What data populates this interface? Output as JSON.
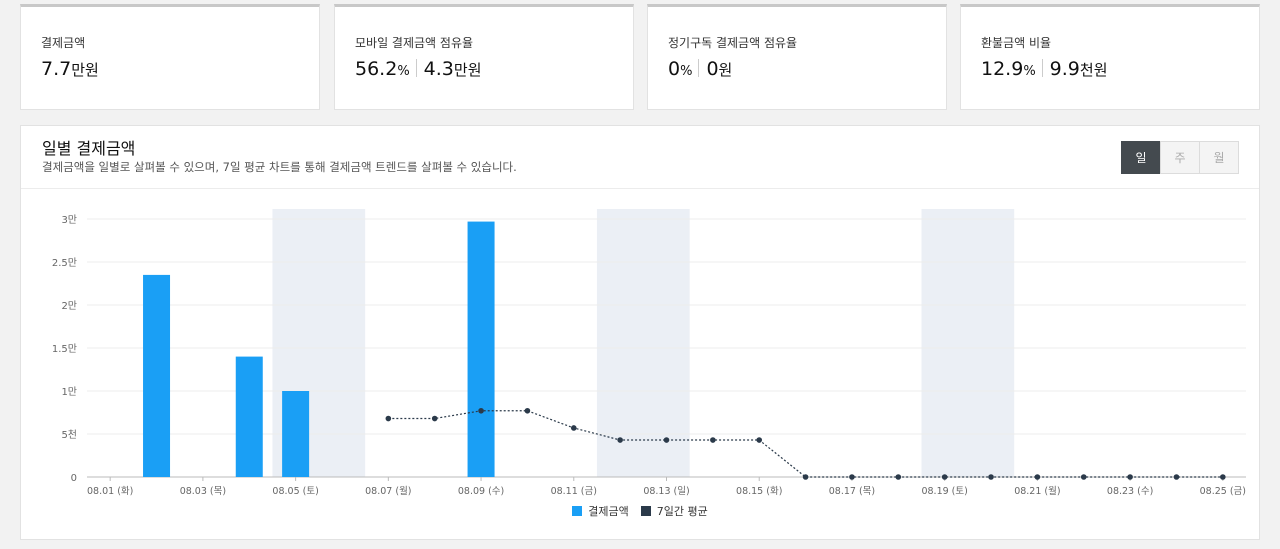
{
  "cards": [
    {
      "label": "결제금액",
      "parts": [
        {
          "num": "7.7",
          "unit": "만원"
        }
      ]
    },
    {
      "label": "모바일 결제금액 점유율",
      "parts": [
        {
          "num": "56.2",
          "unit": "%"
        },
        {
          "num": "4.3",
          "unit": "만원"
        }
      ]
    },
    {
      "label": "정기구독 결제금액 점유율",
      "parts": [
        {
          "num": "0",
          "unit": "%"
        },
        {
          "num": "0",
          "unit": "원"
        }
      ]
    },
    {
      "label": "환불금액 비율",
      "parts": [
        {
          "num": "12.9",
          "unit": "%"
        },
        {
          "num": "9.9",
          "unit": "천원"
        }
      ]
    }
  ],
  "panel": {
    "title": "일별 결제금액",
    "description": "결제금액을 일별로 살펴볼 수 있으며, 7일 평균 차트를 통해 결제금액 트렌드를 살펴볼 수 있습니다.",
    "period_buttons": [
      "일",
      "주",
      "월"
    ],
    "active_period": "일"
  },
  "chart_data": {
    "type": "bar",
    "x": [
      "08.01 (화)",
      "08.02 (수)",
      "08.03 (목)",
      "08.04 (금)",
      "08.05 (토)",
      "08.06 (일)",
      "08.07 (월)",
      "08.08 (화)",
      "08.09 (수)",
      "08.10 (목)",
      "08.11 (금)",
      "08.12 (토)",
      "08.13 (일)",
      "08.14 (월)",
      "08.15 (화)",
      "08.16 (수)",
      "08.17 (목)",
      "08.18 (금)",
      "08.19 (토)",
      "08.20 (일)",
      "08.21 (월)",
      "08.22 (화)",
      "08.23 (수)",
      "08.24 (목)",
      "08.25 (금)"
    ],
    "tick_labels": [
      "08.01 (화)",
      "08.03 (목)",
      "08.05 (토)",
      "08.07 (월)",
      "08.09 (수)",
      "08.11 (금)",
      "08.13 (일)",
      "08.15 (화)",
      "08.17 (목)",
      "08.19 (토)",
      "08.21 (월)",
      "08.23 (수)",
      "08.25 (금)"
    ],
    "y_ticks": [
      {
        "value": 0,
        "label": "0"
      },
      {
        "value": 5000,
        "label": "5천"
      },
      {
        "value": 10000,
        "label": "1만"
      },
      {
        "value": 15000,
        "label": "1.5만"
      },
      {
        "value": 20000,
        "label": "2만"
      },
      {
        "value": 25000,
        "label": "2.5만"
      },
      {
        "value": 30000,
        "label": "3만"
      }
    ],
    "ylim": [
      0,
      30000
    ],
    "weekend_bands": [
      [
        "08.05 (토)",
        "08.06 (일)"
      ],
      [
        "08.12 (토)",
        "08.13 (일)"
      ],
      [
        "08.19 (토)",
        "08.20 (일)"
      ]
    ],
    "series": [
      {
        "name": "결제금액",
        "type": "bar",
        "color": "#1a9ff5",
        "values": [
          0,
          23500,
          0,
          14000,
          10000,
          0,
          0,
          0,
          29700,
          0,
          0,
          0,
          0,
          0,
          0,
          0,
          0,
          0,
          0,
          0,
          0,
          0,
          0,
          0,
          0
        ]
      },
      {
        "name": "7일간 평균",
        "type": "line",
        "style": "dotted",
        "color": "#2b3a4a",
        "values": [
          null,
          null,
          null,
          null,
          null,
          null,
          6800,
          6800,
          7700,
          7700,
          5700,
          4300,
          4300,
          4300,
          4300,
          0,
          0,
          0,
          0,
          0,
          0,
          0,
          0,
          0,
          0
        ]
      }
    ],
    "legend_position": "bottom",
    "grid": true
  }
}
